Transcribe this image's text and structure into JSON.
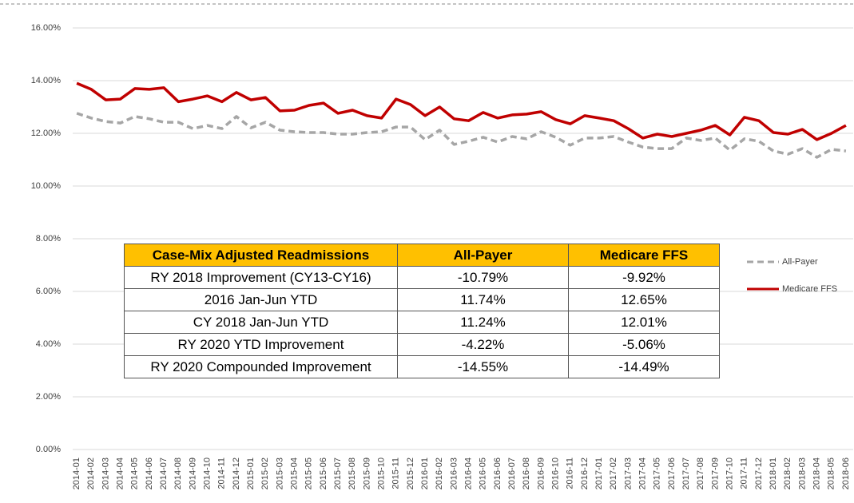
{
  "chart_data": {
    "type": "line",
    "categories": [
      "2014-01",
      "2014-02",
      "2014-03",
      "2014-04",
      "2014-05",
      "2014-06",
      "2014-07",
      "2014-08",
      "2014-09",
      "2014-10",
      "2014-11",
      "2014-12",
      "2015-01",
      "2015-02",
      "2015-03",
      "2015-04",
      "2015-05",
      "2015-06",
      "2015-07",
      "2015-08",
      "2015-09",
      "2015-10",
      "2015-11",
      "2015-12",
      "2016-01",
      "2016-02",
      "2016-03",
      "2016-04",
      "2016-05",
      "2016-06",
      "2016-07",
      "2016-08",
      "2016-09",
      "2016-10",
      "2016-11",
      "2016-12",
      "2017-01",
      "2017-02",
      "2017-03",
      "2017-04",
      "2017-05",
      "2017-06",
      "2017-07",
      "2017-08",
      "2017-09",
      "2017-10",
      "2017-11",
      "2017-12",
      "2018-01",
      "2018-02",
      "2018-03",
      "2018-04",
      "2018-05",
      "2018-06"
    ],
    "series": [
      {
        "name": "All-Payer",
        "color": "#a6a6a6",
        "dashed": true,
        "values": [
          12.76,
          12.58,
          12.45,
          12.39,
          12.64,
          12.55,
          12.42,
          12.42,
          12.18,
          12.3,
          12.18,
          12.64,
          12.21,
          12.42,
          12.12,
          12.06,
          12.03,
          12.03,
          11.97,
          11.97,
          12.03,
          12.06,
          12.24,
          12.24,
          11.76,
          12.12,
          11.58,
          11.7,
          11.85,
          11.67,
          11.88,
          11.79,
          12.06,
          11.85,
          11.55,
          11.82,
          11.82,
          11.88,
          11.67,
          11.48,
          11.42,
          11.42,
          11.82,
          11.73,
          11.82,
          11.36,
          11.79,
          11.7,
          11.33,
          11.21,
          11.42,
          11.09,
          11.39,
          11.33
        ]
      },
      {
        "name": "Medicare FFS",
        "color": "#c00000",
        "dashed": false,
        "values": [
          13.9,
          13.67,
          13.27,
          13.3,
          13.7,
          13.67,
          13.73,
          13.2,
          13.3,
          13.42,
          13.2,
          13.55,
          13.27,
          13.36,
          12.85,
          12.88,
          13.06,
          13.15,
          12.76,
          12.88,
          12.67,
          12.58,
          13.3,
          13.09,
          12.67,
          13.0,
          12.55,
          12.48,
          12.79,
          12.58,
          12.7,
          12.73,
          12.82,
          12.52,
          12.36,
          12.67,
          12.58,
          12.48,
          12.18,
          11.82,
          11.97,
          11.88,
          12.0,
          12.12,
          12.3,
          11.94,
          12.61,
          12.48,
          12.03,
          11.97,
          12.15,
          11.76,
          12.0,
          12.3
        ]
      }
    ],
    "ylim": [
      0,
      16
    ],
    "yticks": [
      {
        "value": 0,
        "label": "0.00%"
      },
      {
        "value": 2,
        "label": "2.00%"
      },
      {
        "value": 4,
        "label": "4.00%"
      },
      {
        "value": 6,
        "label": "6.00%"
      },
      {
        "value": 8,
        "label": "8.00%"
      },
      {
        "value": 10,
        "label": "10.00%"
      },
      {
        "value": 12,
        "label": "12.00%"
      },
      {
        "value": 14,
        "label": "14.00%"
      },
      {
        "value": 16,
        "label": "16.00%"
      }
    ],
    "grid": true,
    "legend": "right",
    "table": {
      "columns": [
        "Case-Mix Adjusted Readmissions",
        "All-Payer",
        "Medicare FFS"
      ],
      "rows": [
        [
          "RY 2018 Improvement (CY13-CY16)",
          "-10.79%",
          "-9.92%"
        ],
        [
          "2016 Jan-Jun YTD",
          "11.74%",
          "12.65%"
        ],
        [
          "CY 2018 Jan-Jun YTD",
          "11.24%",
          "12.01%"
        ],
        [
          "RY 2020 YTD Improvement",
          "-4.22%",
          "-5.06%"
        ],
        [
          "RY 2020 Compounded Improvement",
          "-14.55%",
          "-14.49%"
        ]
      ]
    }
  }
}
